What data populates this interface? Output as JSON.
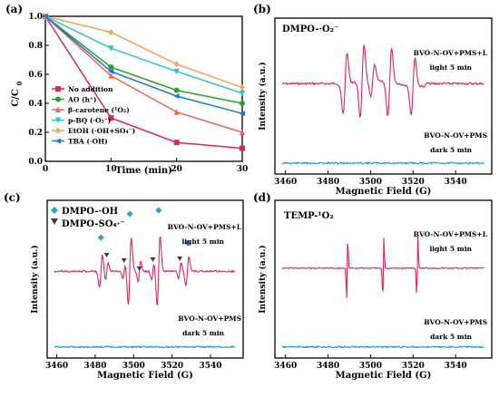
{
  "chart_data": [
    {
      "id": "a",
      "panel_label": "(a)",
      "type": "line",
      "xlabel": "Time (min)",
      "ylabel_main": "C/C",
      "ylabel_sub": "0",
      "xlim": [
        0,
        30
      ],
      "ylim": [
        0,
        1.0
      ],
      "xticks": [
        "0",
        "10",
        "20",
        "30"
      ],
      "yticks": [
        "0.0",
        "0.2",
        "0.4",
        "0.6",
        "0.8",
        "1.0"
      ],
      "x": [
        0,
        10,
        20,
        30
      ],
      "legend_position": "bottom-left",
      "series": [
        {
          "name": "No addition",
          "color": "#e0245e",
          "marker": "square",
          "values": [
            1.0,
            0.3,
            0.13,
            0.09
          ]
        },
        {
          "name": "AO (h⁺)",
          "color": "#2ca02c",
          "marker": "circle",
          "values": [
            1.0,
            0.65,
            0.49,
            0.4
          ]
        },
        {
          "name": "β-carotene (¹O₂)",
          "color": "#f0625a",
          "marker": "triangle-up",
          "values": [
            1.0,
            0.59,
            0.34,
            0.2
          ]
        },
        {
          "name": "p-BQ (·O₂⁻)",
          "color": "#2ec4c0",
          "marker": "triangle-down",
          "values": [
            1.0,
            0.78,
            0.62,
            0.47
          ]
        },
        {
          "name": "EtOH (·OH+SO₄⁻)",
          "color": "#f4a460",
          "marker": "diamond",
          "values": [
            1.0,
            0.89,
            0.67,
            0.51
          ]
        },
        {
          "name": "TBA (·OH)",
          "color": "#1f77d4",
          "marker": "triangle-left",
          "values": [
            1.0,
            0.62,
            0.45,
            0.33
          ]
        }
      ]
    },
    {
      "id": "b",
      "panel_label": "(b)",
      "type": "line",
      "title": "DMPO-·O₂⁻",
      "xlabel": "Magnetic Field (G)",
      "ylabel": "Intensity (a.u.)",
      "xlim": [
        3455,
        3557
      ],
      "xticks": [
        "3460",
        "3480",
        "3500",
        "3520",
        "3540"
      ],
      "series": [
        {
          "name": "BVO-N-OV+PMS+L",
          "condition": "light 5 min",
          "color": "#e0245e",
          "baseline": 0.58,
          "peaks_x": [
            3488,
            3496,
            3501,
            3509,
            3520
          ]
        },
        {
          "name": "BVO-N-OV+PMS",
          "condition": "dark 5 min",
          "color": "#2196c9",
          "baseline": 0.07,
          "peaks_x": []
        }
      ]
    },
    {
      "id": "c",
      "panel_label": "(c)",
      "type": "line",
      "legend": [
        "DMPO-·OH",
        "DMPO-SO₄·⁻"
      ],
      "legend_colors": [
        "#2b9fd9",
        "#3c3c5a"
      ],
      "xlabel": "Magnetic Field (G)",
      "ylabel": "Intensity (a.u.)",
      "xlim": [
        3455,
        3557
      ],
      "xticks": [
        "3460",
        "3480",
        "3500",
        "3520",
        "3540"
      ],
      "oh_markers_x": [
        3483,
        3498,
        3513,
        3528
      ],
      "so4_markers_x": [
        3486,
        3495,
        3503,
        3510,
        3524
      ],
      "series": [
        {
          "name": "BVO-N-OV+PMS+L",
          "condition": "light 5 min",
          "color": "#e0245e",
          "baseline": 0.55
        },
        {
          "name": "BVO-N-OV+PMS",
          "condition": "dark 5 min",
          "color": "#2196c9",
          "baseline": 0.07
        }
      ]
    },
    {
      "id": "d",
      "panel_label": "(d)",
      "type": "line",
      "title": "TEMP-¹O₂",
      "xlabel": "Magnetic Field (G)",
      "ylabel": "Intensity (a.u.)",
      "xlim": [
        3455,
        3557
      ],
      "xticks": [
        "3460",
        "3480",
        "3500",
        "3520",
        "3540"
      ],
      "series": [
        {
          "name": "BVO-N-OV+PMS+L",
          "condition": "light 5 min",
          "color": "#e0245e",
          "baseline": 0.57,
          "peaks_x": [
            3489,
            3506,
            3522
          ]
        },
        {
          "name": "BVO-N-OV+PMS",
          "condition": "dark 5 min",
          "color": "#2196c9",
          "baseline": 0.07,
          "peaks_x": []
        }
      ]
    }
  ]
}
